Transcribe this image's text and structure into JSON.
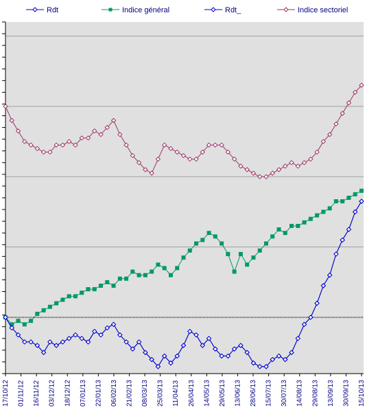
{
  "chart_data": {
    "type": "line",
    "title": "",
    "xlabel": "",
    "ylabel": "",
    "ylim": [
      -16,
      84
    ],
    "grid": true,
    "legend_position": "top",
    "x_tick_labels": [
      "17/10/12",
      "01/11/12",
      "16/11/12",
      "03/12/12",
      "18/12/12",
      "07/01/13",
      "22/01/13",
      "06/02/13",
      "21/02/13",
      "08/03/13",
      "25/03/13",
      "11/04/13",
      "26/04/13",
      "14/05/13",
      "29/05/13",
      "13/06/13",
      "28/06/13",
      "15/07/13",
      "30/07/13",
      "14/08/13",
      "29/08/13",
      "13/09/13",
      "30/09/13",
      "15/10/13"
    ],
    "series": [
      {
        "name": "Rdt",
        "color": "#0000cc",
        "marker": "diamond",
        "line": "solid",
        "values": [
          0,
          -3,
          -5,
          -7,
          -7,
          -8,
          -10,
          -7,
          -8,
          -7,
          -6,
          -5,
          -6,
          -7,
          -4,
          -5,
          -3,
          -2,
          -5,
          -7,
          -9,
          -7,
          -10,
          -12,
          -14,
          -11,
          -13,
          -11,
          -8,
          -4,
          -5,
          -8,
          -6,
          -9,
          -11,
          -11,
          -9,
          -8,
          -10,
          -13,
          -14,
          -14,
          -12,
          -11,
          -12,
          -10,
          -6,
          -2,
          0,
          4,
          9,
          12,
          18,
          22,
          25,
          30,
          33
        ]
      },
      {
        "name": "Indice général",
        "color": "#009966",
        "marker": "square",
        "line": "solid",
        "values": [
          0,
          -2,
          -1,
          -2,
          -1,
          1,
          2,
          3,
          4,
          5,
          6,
          6,
          7,
          8,
          8,
          9,
          10,
          9,
          11,
          11,
          13,
          12,
          12,
          13,
          15,
          14,
          12,
          14,
          17,
          19,
          21,
          22,
          24,
          23,
          21,
          18,
          13,
          18,
          15,
          17,
          19,
          21,
          23,
          25,
          24,
          26,
          26,
          27,
          28,
          29,
          30,
          31,
          33,
          33,
          34,
          35,
          36
        ]
      },
      {
        "name": "Rdt_",
        "color": "#0000cc",
        "marker": "diamond",
        "line": "solid",
        "values": [
          0,
          -3,
          -5,
          -7,
          -7,
          -8,
          -10,
          -7,
          -8,
          -7,
          -6,
          -5,
          -6,
          -7,
          -4,
          -5,
          -3,
          -2,
          -5,
          -7,
          -9,
          -7,
          -10,
          -12,
          -14,
          -11,
          -13,
          -11,
          -8,
          -4,
          -5,
          -8,
          -6,
          -9,
          -11,
          -11,
          -9,
          -8,
          -10,
          -13,
          -14,
          -14,
          -12,
          -11,
          -12,
          -10,
          -6,
          -2,
          0,
          4,
          9,
          12,
          18,
          22,
          25,
          30,
          33
        ]
      },
      {
        "name": "Indice sectoriel",
        "color": "#993366",
        "marker": "diamond",
        "line": "solid",
        "values": [
          60,
          56,
          53,
          50,
          49,
          48,
          47,
          47,
          49,
          49,
          50,
          49,
          51,
          51,
          53,
          52,
          54,
          56,
          52,
          49,
          46,
          44,
          42,
          41,
          45,
          49,
          48,
          47,
          46,
          45,
          45,
          47,
          49,
          49,
          49,
          47,
          45,
          43,
          42,
          41,
          40,
          40,
          41,
          42,
          43,
          44,
          43,
          44,
          45,
          47,
          50,
          52,
          55,
          58,
          61,
          64,
          66
        ]
      }
    ]
  }
}
